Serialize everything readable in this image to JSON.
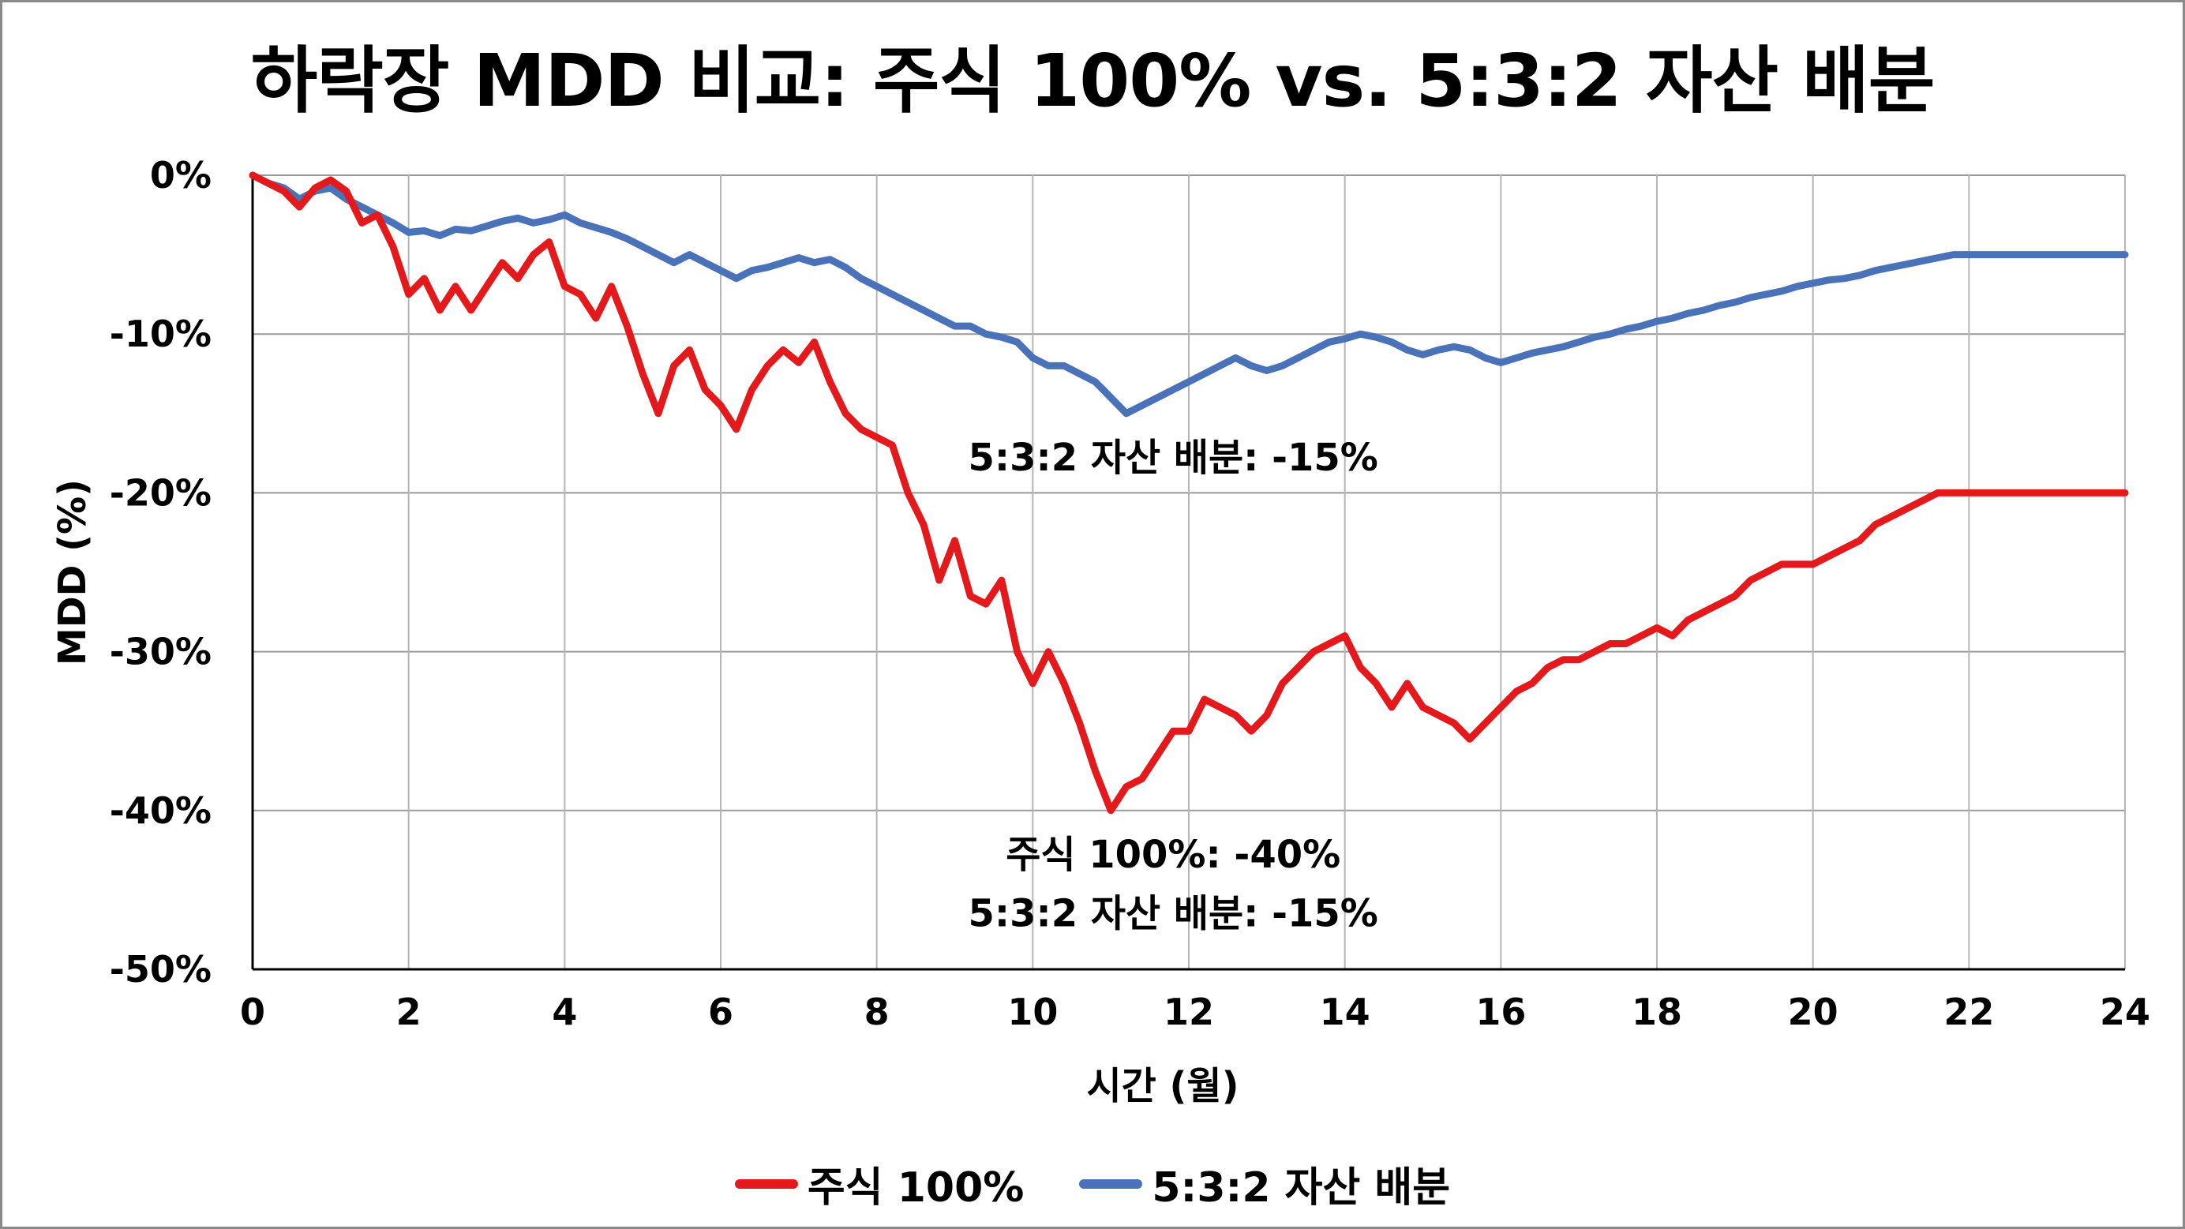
{
  "chart_data": {
    "type": "line",
    "title": "하락장 MDD 비교: 주식 100% vs. 5:3:2 자산 배분",
    "xlabel": "시간 (월)",
    "ylabel": "MDD (%)",
    "xlim": [
      0,
      24
    ],
    "ylim": [
      -50,
      0
    ],
    "xticks": [
      0,
      2,
      4,
      6,
      8,
      10,
      12,
      14,
      16,
      18,
      20,
      22,
      24
    ],
    "yticks": [
      0,
      -10,
      -20,
      -30,
      -40,
      -50
    ],
    "ytick_labels": [
      "0%",
      "-10%",
      "-20%",
      "-30%",
      "-40%",
      "-50%"
    ],
    "grid": true,
    "legend_position": "bottom-center",
    "series": [
      {
        "name": "주식 100%",
        "color": "#e3191c",
        "x": [
          0,
          0.2,
          0.4,
          0.6,
          0.8,
          1.0,
          1.2,
          1.4,
          1.6,
          1.8,
          2.0,
          2.2,
          2.4,
          2.6,
          2.8,
          3.0,
          3.2,
          3.4,
          3.6,
          3.8,
          4.0,
          4.2,
          4.4,
          4.6,
          4.8,
          5.0,
          5.2,
          5.4,
          5.6,
          5.8,
          6.0,
          6.2,
          6.4,
          6.6,
          6.8,
          7.0,
          7.2,
          7.4,
          7.6,
          7.8,
          8.0,
          8.2,
          8.4,
          8.6,
          8.8,
          9.0,
          9.2,
          9.4,
          9.6,
          9.8,
          10.0,
          10.2,
          10.4,
          10.6,
          10.8,
          11.0,
          11.2,
          11.4,
          11.6,
          11.8,
          12.0,
          12.2,
          12.4,
          12.6,
          12.8,
          13.0,
          13.2,
          13.4,
          13.6,
          13.8,
          14.0,
          14.2,
          14.4,
          14.6,
          14.8,
          15.0,
          15.2,
          15.4,
          15.6,
          15.8,
          16.0,
          16.2,
          16.4,
          16.6,
          16.8,
          17.0,
          17.2,
          17.4,
          17.6,
          17.8,
          18.0,
          18.2,
          18.4,
          18.6,
          18.8,
          19.0,
          19.2,
          19.4,
          19.6,
          19.8,
          20.0,
          20.2,
          20.4,
          20.6,
          20.8,
          21.0,
          21.2,
          21.4,
          21.6,
          21.8,
          22.0,
          22.2,
          22.4,
          22.6,
          22.8,
          23.0,
          23.2,
          23.4,
          23.6,
          23.8,
          24.0
        ],
        "values": [
          0,
          -0.5,
          -1.0,
          -2.0,
          -0.8,
          -0.3,
          -1.0,
          -3.0,
          -2.5,
          -4.5,
          -7.5,
          -6.5,
          -8.5,
          -7.0,
          -8.5,
          -7.0,
          -5.5,
          -6.5,
          -5.0,
          -4.2,
          -7.0,
          -7.5,
          -9.0,
          -7.0,
          -9.5,
          -12.5,
          -15.0,
          -12.0,
          -11.0,
          -13.5,
          -14.5,
          -16.0,
          -13.5,
          -12.0,
          -11.0,
          -11.8,
          -10.5,
          -13.0,
          -15.0,
          -16.0,
          -16.5,
          -17.0,
          -20.0,
          -22.0,
          -25.5,
          -23.0,
          -26.5,
          -27.0,
          -25.5,
          -30.0,
          -32.0,
          -30.0,
          -32.0,
          -34.5,
          -37.5,
          -40.0,
          -38.5,
          -38.0,
          -36.5,
          -35.0,
          -35.0,
          -33.0,
          -33.5,
          -34.0,
          -35.0,
          -34.0,
          -32.0,
          -31.0,
          -30.0,
          -29.5,
          -29.0,
          -31.0,
          -32.0,
          -33.5,
          -32.0,
          -33.5,
          -34.0,
          -34.5,
          -35.5,
          -34.5,
          -33.5,
          -32.5,
          -32.0,
          -31.0,
          -30.5,
          -30.5,
          -30.0,
          -29.5,
          -29.5,
          -29.0,
          -28.5,
          -29.0,
          -28.0,
          -27.5,
          -27.0,
          -26.5,
          -25.5,
          -25.0,
          -24.5,
          -24.5,
          -24.5,
          -24.0,
          -23.5,
          -23.0,
          -22.0,
          -21.5,
          -21.0,
          -20.5,
          -20.0,
          -20.0,
          -20.0,
          -20.0,
          -20.0,
          -20.0,
          -20.0,
          -20.0,
          -20.0,
          -20.0,
          -20.0,
          -20.0,
          -20.0
        ]
      },
      {
        "name": "5:3:2 자산 배분",
        "color": "#4a72b8",
        "x": [
          0,
          0.2,
          0.4,
          0.6,
          0.8,
          1.0,
          1.2,
          1.4,
          1.6,
          1.8,
          2.0,
          2.2,
          2.4,
          2.6,
          2.8,
          3.0,
          3.2,
          3.4,
          3.6,
          3.8,
          4.0,
          4.2,
          4.4,
          4.6,
          4.8,
          5.0,
          5.2,
          5.4,
          5.6,
          5.8,
          6.0,
          6.2,
          6.4,
          6.6,
          6.8,
          7.0,
          7.2,
          7.4,
          7.6,
          7.8,
          8.0,
          8.2,
          8.4,
          8.6,
          8.8,
          9.0,
          9.2,
          9.4,
          9.6,
          9.8,
          10.0,
          10.2,
          10.4,
          10.6,
          10.8,
          11.0,
          11.2,
          11.4,
          11.6,
          11.8,
          12.0,
          12.2,
          12.4,
          12.6,
          12.8,
          13.0,
          13.2,
          13.4,
          13.6,
          13.8,
          14.0,
          14.2,
          14.4,
          14.6,
          14.8,
          15.0,
          15.2,
          15.4,
          15.6,
          15.8,
          16.0,
          16.2,
          16.4,
          16.6,
          16.8,
          17.0,
          17.2,
          17.4,
          17.6,
          17.8,
          18.0,
          18.2,
          18.4,
          18.6,
          18.8,
          19.0,
          19.2,
          19.4,
          19.6,
          19.8,
          20.0,
          20.2,
          20.4,
          20.6,
          20.8,
          21.0,
          21.2,
          21.4,
          21.6,
          21.8,
          22.0,
          22.2,
          22.4,
          22.6,
          22.8,
          23.0,
          23.2,
          23.4,
          23.6,
          23.8,
          24.0
        ],
        "values": [
          0,
          -0.5,
          -0.8,
          -1.5,
          -1.0,
          -0.8,
          -1.5,
          -2.0,
          -2.5,
          -3.0,
          -3.6,
          -3.5,
          -3.8,
          -3.4,
          -3.5,
          -3.2,
          -2.9,
          -2.7,
          -3.0,
          -2.8,
          -2.5,
          -3.0,
          -3.3,
          -3.6,
          -4.0,
          -4.5,
          -5.0,
          -5.5,
          -5.0,
          -5.5,
          -6.0,
          -6.5,
          -6.0,
          -5.8,
          -5.5,
          -5.2,
          -5.5,
          -5.3,
          -5.8,
          -6.5,
          -7.0,
          -7.5,
          -8.0,
          -8.5,
          -9.0,
          -9.5,
          -9.5,
          -10.0,
          -10.2,
          -10.5,
          -11.5,
          -12.0,
          -12.0,
          -12.5,
          -13.0,
          -14.0,
          -15.0,
          -14.5,
          -14.0,
          -13.5,
          -13.0,
          -12.5,
          -12.0,
          -11.5,
          -12.0,
          -12.3,
          -12.0,
          -11.5,
          -11.0,
          -10.5,
          -10.3,
          -10.0,
          -10.2,
          -10.5,
          -11.0,
          -11.3,
          -11.0,
          -10.8,
          -11.0,
          -11.5,
          -11.8,
          -11.5,
          -11.2,
          -11.0,
          -10.8,
          -10.5,
          -10.2,
          -10.0,
          -9.7,
          -9.5,
          -9.2,
          -9.0,
          -8.7,
          -8.5,
          -8.2,
          -8.0,
          -7.7,
          -7.5,
          -7.3,
          -7.0,
          -6.8,
          -6.6,
          -6.5,
          -6.3,
          -6.0,
          -5.8,
          -5.6,
          -5.4,
          -5.2,
          -5.0,
          -5.0,
          -5.0,
          -5.0,
          -5.0,
          -5.0,
          -5.0,
          -5.0,
          -5.0,
          -5.0,
          -5.0,
          -5.0
        ]
      }
    ],
    "annotations": [
      {
        "text": "5:3:2 자산 배분: -15%",
        "x": 11.8,
        "y": -18.6
      },
      {
        "text": "주식 100%: -40%",
        "x": 11.8,
        "y": -43.6
      },
      {
        "text": "5:3:2 자산 배분: -15%",
        "x": 11.8,
        "y": -47.3
      }
    ]
  }
}
